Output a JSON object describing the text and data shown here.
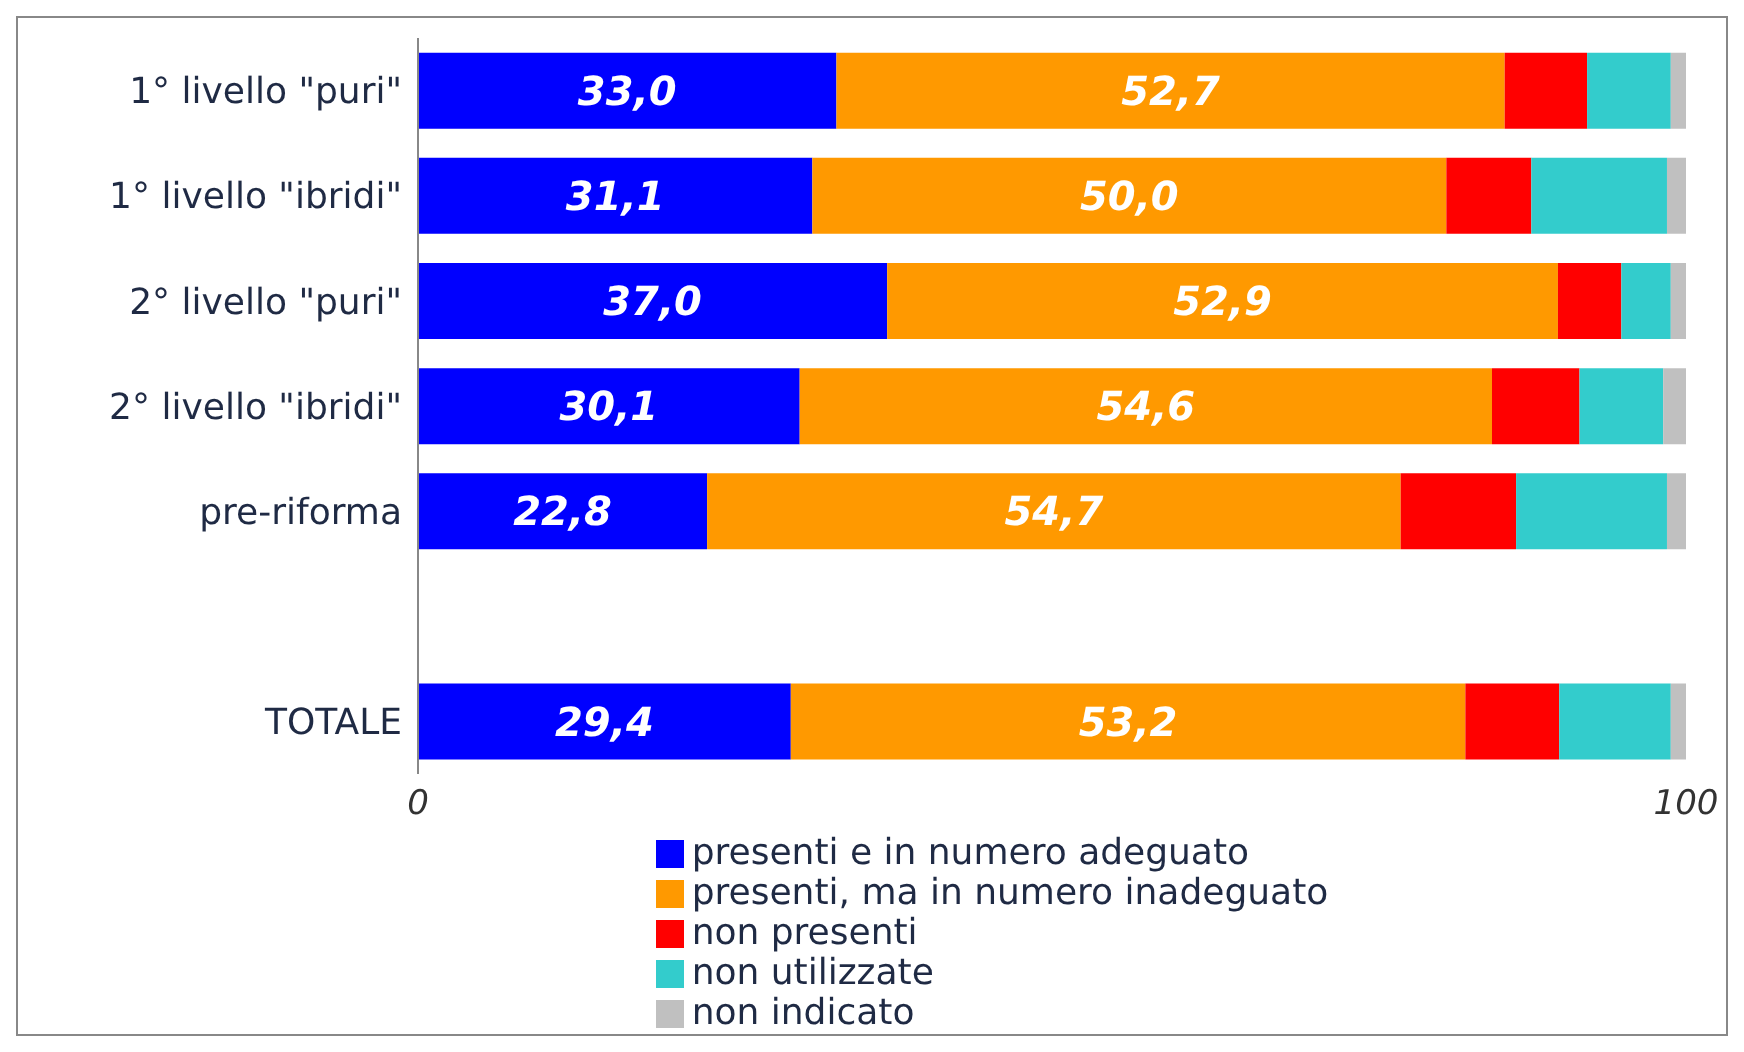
{
  "chart_data": {
    "type": "bar",
    "orientation": "horizontal",
    "stacked": true,
    "categories": [
      "1° livello \"puri\"",
      "1° livello \"ibridi\"",
      "2° livello \"puri\"",
      "2° livello \"ibridi\"",
      "pre-riforma",
      null,
      "TOTALE"
    ],
    "series": [
      {
        "name": "presenti e in numero adeguato",
        "color": "#0000ff",
        "values": [
          33.0,
          31.1,
          37.0,
          30.1,
          22.8,
          null,
          29.4
        ],
        "value_labels": [
          "33,0",
          "31,1",
          "37,0",
          "30,1",
          "22,8",
          null,
          "29,4"
        ]
      },
      {
        "name": "presenti, ma in numero inadeguato",
        "color": "#ff9900",
        "values": [
          52.7,
          50.0,
          52.9,
          54.6,
          54.7,
          null,
          53.2
        ],
        "value_labels": [
          "52,7",
          "50,0",
          "52,9",
          "54,6",
          "54,7",
          null,
          "53,2"
        ]
      },
      {
        "name": "non presenti",
        "color": "#ff0000",
        "values": [
          6.5,
          6.7,
          5.0,
          6.9,
          9.1,
          null,
          7.4
        ]
      },
      {
        "name": "non utilizzate",
        "color": "#33cccc",
        "values": [
          6.6,
          10.7,
          3.9,
          6.6,
          11.9,
          null,
          8.8
        ]
      },
      {
        "name": "non indicato",
        "color": "#c0c0c0",
        "values": [
          1.2,
          1.5,
          1.2,
          1.8,
          1.5,
          null,
          1.2
        ]
      }
    ],
    "xlim": [
      0,
      100
    ],
    "xticks": [
      0,
      100
    ],
    "grid": false,
    "legend": "bottom"
  }
}
